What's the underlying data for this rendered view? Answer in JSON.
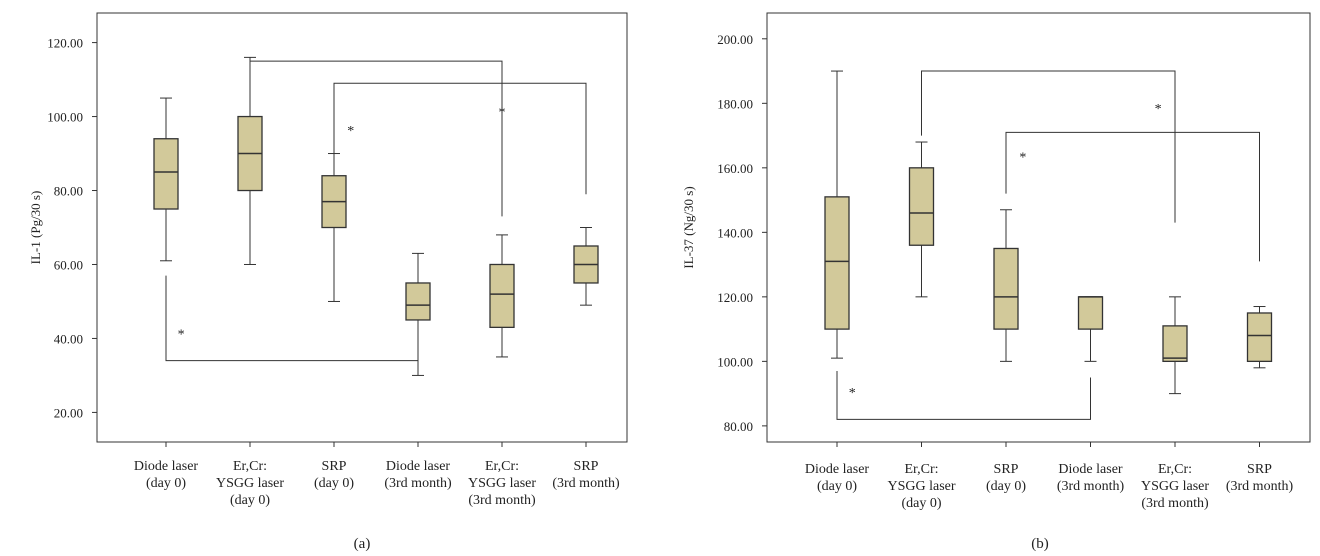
{
  "chart_data": [
    {
      "type": "box",
      "panel_label": "(a)",
      "ylabel": "IL-1 (Pg/30 s)",
      "ylim": [
        12,
        128
      ],
      "yticks": [
        "20.00",
        "40.00",
        "60.00",
        "80.00",
        "100.00",
        "120.00"
      ],
      "categories": [
        [
          "Diode laser",
          "(day 0)"
        ],
        [
          "Er,Cr:",
          "YSGG laser",
          "(day 0)"
        ],
        [
          "SRP",
          "(day 0)"
        ],
        [
          "Diode laser",
          "(3rd month)"
        ],
        [
          "Er,Cr:",
          "YSGG laser",
          "(3rd month)"
        ],
        [
          "SRP",
          "(3rd month)"
        ]
      ],
      "boxes": [
        {
          "min": 61,
          "q1": 75,
          "median": 85,
          "q3": 94,
          "max": 105
        },
        {
          "min": 60,
          "q1": 80,
          "median": 90,
          "q3": 100,
          "max": 116
        },
        {
          "min": 50,
          "q1": 70,
          "median": 77,
          "q3": 84,
          "max": 90
        },
        {
          "min": 30,
          "q1": 45,
          "median": 49,
          "q3": 55,
          "max": 63
        },
        {
          "min": 35,
          "q1": 43,
          "median": 52,
          "q3": 60,
          "max": 68
        },
        {
          "min": 49,
          "q1": 55,
          "median": 60,
          "q3": 65,
          "max": 70
        }
      ],
      "brackets": [
        {
          "from": 0,
          "to": 3,
          "y": 34,
          "from_end": 57,
          "to_end": 34,
          "direction": "below",
          "star_label": "*",
          "star_x": 0.18,
          "star_y": 40
        },
        {
          "from": 1,
          "to": 4,
          "y": 115,
          "from_end": 115,
          "to_end": 73,
          "direction": "above",
          "star_label": "*",
          "star_x": 4.0,
          "star_y": 100
        },
        {
          "from": 2,
          "to": 5,
          "y": 109,
          "from_end": 88,
          "to_end": 79,
          "direction": "above",
          "star_label": "*",
          "star_x": 2.2,
          "star_y": 95
        }
      ]
    },
    {
      "type": "box",
      "panel_label": "(b)",
      "ylabel": "IL-37 (Ng/30 s)",
      "ylim": [
        75,
        208
      ],
      "yticks": [
        "80.00",
        "100.00",
        "120.00",
        "140.00",
        "160.00",
        "180.00",
        "200.00"
      ],
      "categories": [
        [
          "Diode laser",
          "(day 0)"
        ],
        [
          "Er,Cr:",
          "YSGG laser",
          "(day 0)"
        ],
        [
          "SRP",
          "(day 0)"
        ],
        [
          "Diode laser",
          "(3rd month)"
        ],
        [
          "Er,Cr:",
          "YSGG laser",
          "(3rd month)"
        ],
        [
          "SRP",
          "(3rd month)"
        ]
      ],
      "boxes": [
        {
          "min": 101,
          "q1": 110,
          "median": 131,
          "q3": 151,
          "max": 190
        },
        {
          "min": 120,
          "q1": 136,
          "median": 146,
          "q3": 160,
          "max": 168
        },
        {
          "min": 100,
          "q1": 110,
          "median": 120,
          "q3": 135,
          "max": 147
        },
        {
          "min": 100,
          "q1": 110,
          "median": 120,
          "q3": 120,
          "max": 120
        },
        {
          "min": 90,
          "q1": 100,
          "median": 101,
          "q3": 111,
          "max": 120
        },
        {
          "min": 98,
          "q1": 100,
          "median": 108,
          "q3": 115,
          "max": 117
        }
      ],
      "brackets": [
        {
          "from": 0,
          "to": 3,
          "y": 82,
          "from_end": 97,
          "to_end": 95,
          "direction": "below",
          "star_label": "*",
          "star_x": 0.18,
          "star_y": 89
        },
        {
          "from": 1,
          "to": 4,
          "y": 190,
          "from_end": 170,
          "to_end": 143,
          "direction": "above",
          "star_label": "*",
          "star_x": 3.8,
          "star_y": 177
        },
        {
          "from": 2,
          "to": 5,
          "y": 171,
          "from_end": 152,
          "to_end": 131,
          "direction": "above",
          "star_label": "*",
          "star_x": 2.2,
          "star_y": 162
        }
      ]
    }
  ],
  "style": {
    "box_fill": "#d2c99a",
    "line_color": "#333333"
  }
}
